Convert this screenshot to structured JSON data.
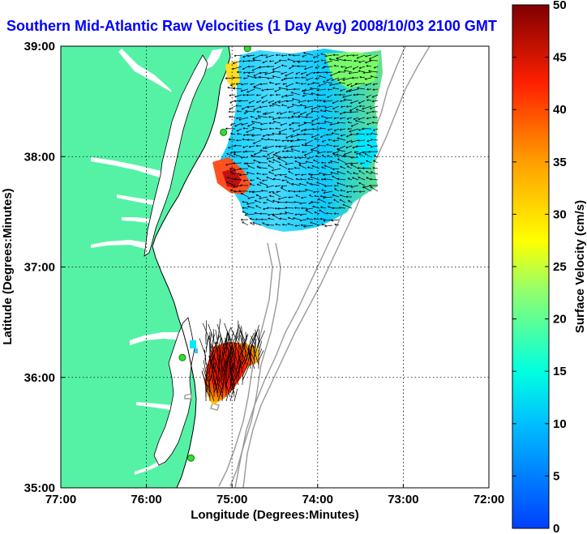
{
  "title": "Southern Mid-Atlantic Raw Velocities (1 Day Avg) 2008/10/03 2100 GMT",
  "axes": {
    "xlabel": "Longitude (Degrees:Minutes)",
    "ylabel": "Latitude (Degrees:Minutes)",
    "x_ticks": [
      "77:00",
      "76:00",
      "75:00",
      "74:00",
      "73:00",
      "72:00"
    ],
    "y_ticks": [
      "39:00",
      "38:00",
      "37:00",
      "36:00",
      "35:00"
    ]
  },
  "colorbar": {
    "label": "Surface Velocity (cm/s)",
    "ticks": [
      "50",
      "45",
      "40",
      "35",
      "30",
      "25",
      "20",
      "15",
      "10",
      "5",
      "0"
    ],
    "min": 0,
    "max": 50
  },
  "chart_data": {
    "type": "heatmap",
    "xlim": [
      -77,
      -72
    ],
    "ylim": [
      35,
      39
    ],
    "grid": true,
    "colors": {
      "land": "#55f2a6",
      "ocean": "#ffffff",
      "title": "#0000ff",
      "bathymetry": "#999999",
      "stations": "#33dd33"
    },
    "stations": [
      {
        "lon": -74.82,
        "lat": 38.98
      },
      {
        "lon": -75.1,
        "lat": 38.22
      },
      {
        "lon": -75.58,
        "lat": 36.18
      },
      {
        "lon": -75.48,
        "lat": 35.27
      }
    ]
  }
}
